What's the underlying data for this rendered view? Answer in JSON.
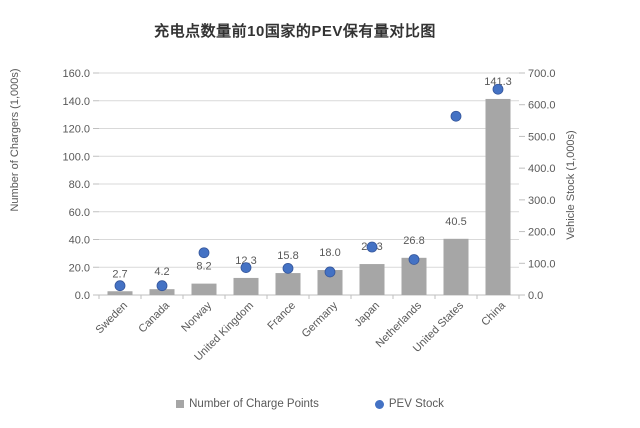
{
  "chart_data": {
    "type": "combo-bar-scatter",
    "title": "充电点数量前10国家的PEV保有量对比图",
    "categories": [
      "Sweden",
      "Canada",
      "Norway",
      "United Kingdom",
      "France",
      "Germany",
      "Japan",
      "Netherlands",
      "United States",
      "China"
    ],
    "series": [
      {
        "name": "Number of Charge Points",
        "chart_type": "bar",
        "axis": "left",
        "color": "#A6A6A6",
        "values": [
          2.7,
          4.2,
          8.2,
          12.3,
          15.8,
          18.0,
          22.3,
          26.8,
          40.5,
          141.3
        ],
        "data_labels": [
          "2.7",
          "4.2",
          "8.2",
          "12.3",
          "15.8",
          "18.0",
          "22.3",
          "26.8",
          "40.5",
          "141.3"
        ]
      },
      {
        "name": "PEV Stock",
        "chart_type": "scatter",
        "axis": "right",
        "color": "#4472C4",
        "values": [
          29.3,
          29.3,
          133.3,
          86.4,
          84.0,
          72.7,
          151.3,
          112.0,
          563.7,
          648.8
        ]
      }
    ],
    "left_axis": {
      "title": "Number of Chargers (1,000s)",
      "min": 0,
      "max": 160,
      "step": 20
    },
    "right_axis": {
      "title": "Vehicle Stock (1,000s)",
      "min": 0,
      "max": 700,
      "step": 100
    },
    "legend": {
      "position": "bottom",
      "items": [
        {
          "label": "Number of Charge Points",
          "marker": "square",
          "color": "#A6A6A6"
        },
        {
          "label": "PEV Stock",
          "marker": "circle",
          "color": "#4472C4"
        }
      ]
    },
    "grid": true,
    "style": {
      "text_color": "#595959",
      "grid_color": "#D9D9D9",
      "axis_color": "#BFBFBF",
      "title_color": "#333333",
      "background": "#FFFFFF"
    }
  }
}
